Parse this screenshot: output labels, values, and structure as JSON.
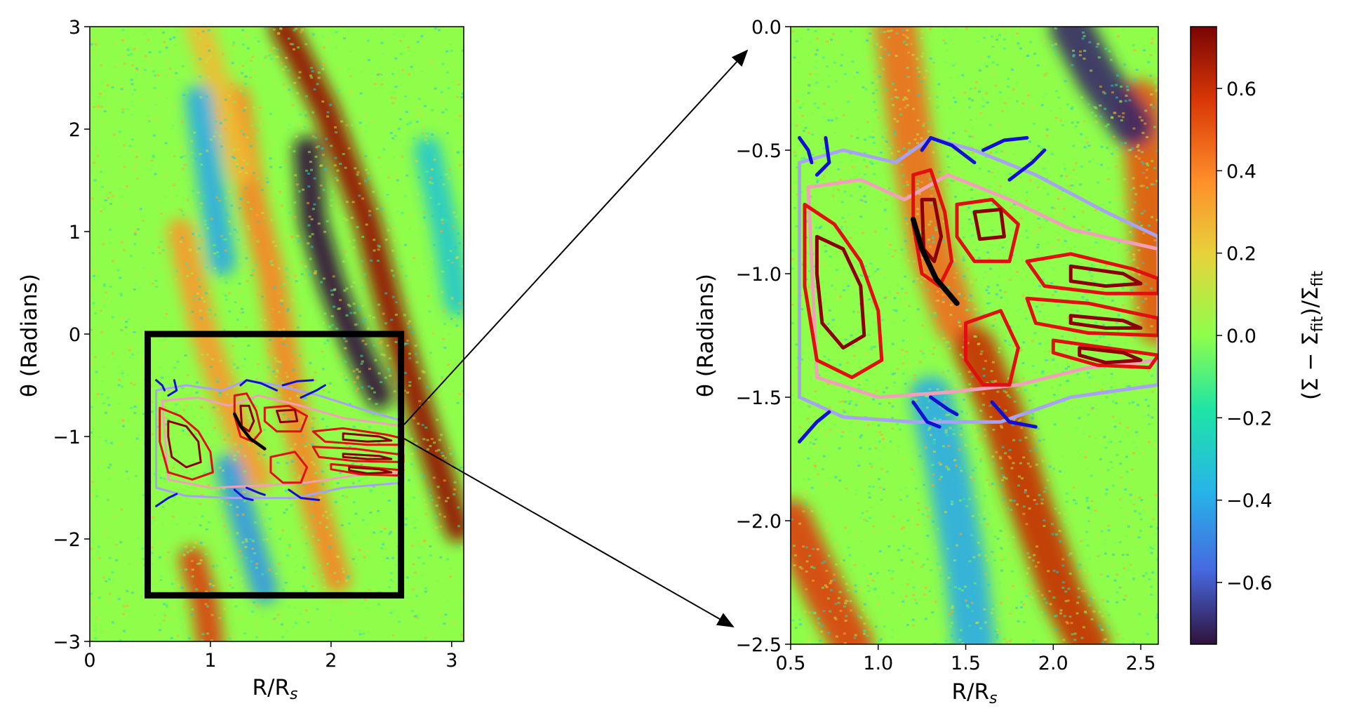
{
  "chart_data": [
    {
      "type": "heatmap",
      "panel": "full",
      "xlabel": "R/R",
      "xlabel_sub": "s",
      "ylabel": "θ (Radians)",
      "xlim": [
        0,
        3.1
      ],
      "ylim": [
        -3,
        3
      ],
      "xticks": [
        0,
        1,
        2,
        3
      ],
      "xtick_labels": [
        "0",
        "1",
        "2",
        "3"
      ],
      "yticks": [
        -3,
        -2,
        -1,
        0,
        1,
        2,
        3
      ],
      "ytick_labels": [
        "−3",
        "−2",
        "−1",
        "0",
        "1",
        "2",
        "3"
      ],
      "zoom_box": {
        "x": [
          0.48,
          2.58
        ],
        "y": [
          -2.55,
          0.0
        ]
      },
      "features": [
        {
          "kind": "overdense-band",
          "points": [
            [
              1.6,
              3.0
            ],
            [
              1.95,
              2.2
            ],
            [
              2.3,
              1.1
            ],
            [
              2.5,
              0.2
            ],
            [
              2.75,
              -0.8
            ],
            [
              3.05,
              -1.9
            ]
          ],
          "value": 0.7
        },
        {
          "kind": "overdense-band",
          "points": [
            [
              1.22,
              2.3
            ],
            [
              1.35,
              1.3
            ],
            [
              1.5,
              0.6
            ],
            [
              1.7,
              -0.8
            ],
            [
              1.85,
              -1.6
            ],
            [
              2.05,
              -2.4
            ]
          ],
          "value": 0.4
        },
        {
          "kind": "overdense-band",
          "points": [
            [
              0.75,
              1.0
            ],
            [
              0.95,
              0.0
            ],
            [
              1.15,
              -0.7
            ],
            [
              1.4,
              -1.4
            ]
          ],
          "value": 0.35
        },
        {
          "kind": "overdense-band",
          "points": [
            [
              0.85,
              -2.2
            ],
            [
              0.95,
              -2.6
            ],
            [
              1.0,
              -3.0
            ]
          ],
          "value": 0.55
        },
        {
          "kind": "overdense-band",
          "points": [
            [
              0.9,
              3.0
            ],
            [
              1.1,
              2.3
            ],
            [
              1.25,
              1.6
            ]
          ],
          "value": 0.25
        },
        {
          "kind": "underdense-band",
          "points": [
            [
              1.8,
              1.8
            ],
            [
              1.85,
              1.1
            ],
            [
              2.0,
              0.5
            ],
            [
              2.2,
              -0.1
            ],
            [
              2.4,
              -0.6
            ]
          ],
          "value": -0.75
        },
        {
          "kind": "underdense-band",
          "points": [
            [
              0.9,
              2.3
            ],
            [
              1.0,
              1.5
            ],
            [
              1.1,
              0.7
            ]
          ],
          "value": -0.4
        },
        {
          "kind": "underdense-band",
          "points": [
            [
              1.15,
              -1.3
            ],
            [
              1.3,
              -1.9
            ],
            [
              1.45,
              -2.5
            ]
          ],
          "value": -0.45
        },
        {
          "kind": "underdense-band",
          "points": [
            [
              2.8,
              1.8
            ],
            [
              2.95,
              1.0
            ],
            [
              3.05,
              0.3
            ]
          ],
          "value": -0.3
        }
      ]
    },
    {
      "type": "heatmap",
      "panel": "zoom",
      "xlabel": "R/R",
      "xlabel_sub": "s",
      "ylabel": "θ (Radians)",
      "xlim": [
        0.5,
        2.6
      ],
      "ylim": [
        -2.5,
        0.0
      ],
      "xticks": [
        0.5,
        1.0,
        1.5,
        2.0,
        2.5
      ],
      "xtick_labels": [
        "0.5",
        "1.0",
        "1.5",
        "2.0",
        "2.5"
      ],
      "yticks": [
        -2.5,
        -2.0,
        -1.5,
        -1.0,
        -0.5,
        0.0
      ],
      "ytick_labels": [
        "−2.5",
        "−2.0",
        "−1.5",
        "−1.0",
        "−0.5",
        "0.0"
      ],
      "features": [
        {
          "kind": "overdense-band",
          "points": [
            [
              1.1,
              0.0
            ],
            [
              1.2,
              -0.5
            ],
            [
              1.3,
              -0.9
            ],
            [
              1.45,
              -1.2
            ]
          ],
          "value": 0.45
        },
        {
          "kind": "overdense-band",
          "points": [
            [
              1.55,
              -1.3
            ],
            [
              1.7,
              -1.55
            ],
            [
              1.85,
              -1.9
            ],
            [
              2.05,
              -2.3
            ],
            [
              2.2,
              -2.5
            ]
          ],
          "value": 0.6
        },
        {
          "kind": "overdense-band",
          "points": [
            [
              0.5,
              -2.0
            ],
            [
              0.7,
              -2.3
            ],
            [
              0.85,
              -2.5
            ]
          ],
          "value": 0.55
        },
        {
          "kind": "overdense-band",
          "points": [
            [
              2.5,
              -0.3
            ],
            [
              2.55,
              -0.7
            ],
            [
              2.6,
              -1.2
            ]
          ],
          "value": 0.5
        },
        {
          "kind": "underdense-band",
          "points": [
            [
              2.1,
              0.0
            ],
            [
              2.25,
              -0.2
            ],
            [
              2.45,
              -0.4
            ]
          ],
          "value": -0.7
        },
        {
          "kind": "underdense-band",
          "points": [
            [
              1.3,
              -1.5
            ],
            [
              1.4,
              -1.8
            ],
            [
              1.5,
              -2.2
            ],
            [
              1.55,
              -2.5
            ]
          ],
          "value": -0.4
        }
      ],
      "contours": [
        {
          "level": "light",
          "color": "#a8a3f0",
          "points": [
            [
              0.55,
              -0.55
            ],
            [
              0.8,
              -0.5
            ],
            [
              1.1,
              -0.55
            ],
            [
              1.3,
              -0.45
            ],
            [
              1.55,
              -0.5
            ],
            [
              1.9,
              -0.6
            ],
            [
              2.3,
              -0.75
            ],
            [
              2.6,
              -0.85
            ],
            [
              2.6,
              -1.45
            ],
            [
              2.1,
              -1.5
            ],
            [
              1.7,
              -1.6
            ],
            [
              1.2,
              -1.6
            ],
            [
              0.8,
              -1.58
            ],
            [
              0.55,
              -1.5
            ]
          ]
        },
        {
          "level": "pink",
          "color": "#f0a0b8",
          "points": [
            [
              0.6,
              -0.65
            ],
            [
              0.9,
              -0.62
            ],
            [
              1.15,
              -0.7
            ],
            [
              1.4,
              -0.6
            ],
            [
              1.75,
              -0.7
            ],
            [
              2.1,
              -0.82
            ],
            [
              2.6,
              -0.9
            ],
            [
              2.6,
              -1.35
            ],
            [
              2.2,
              -1.38
            ],
            [
              1.8,
              -1.45
            ],
            [
              1.4,
              -1.48
            ],
            [
              1.0,
              -1.5
            ],
            [
              0.65,
              -1.42
            ]
          ]
        },
        {
          "level": "red",
          "color": "#e01010",
          "points": [
            [
              0.58,
              -0.72
            ],
            [
              0.75,
              -0.8
            ],
            [
              0.9,
              -0.95
            ],
            [
              1.0,
              -1.15
            ],
            [
              1.02,
              -1.35
            ],
            [
              0.85,
              -1.42
            ],
            [
              0.65,
              -1.35
            ],
            [
              0.58,
              -1.05
            ]
          ]
        },
        {
          "level": "red",
          "color": "#e01010",
          "points": [
            [
              1.2,
              -0.6
            ],
            [
              1.3,
              -0.58
            ],
            [
              1.38,
              -0.75
            ],
            [
              1.42,
              -0.95
            ],
            [
              1.35,
              -1.05
            ],
            [
              1.25,
              -1.0
            ],
            [
              1.2,
              -0.8
            ]
          ]
        },
        {
          "level": "red",
          "color": "#e01010",
          "points": [
            [
              1.45,
              -0.72
            ],
            [
              1.65,
              -0.7
            ],
            [
              1.8,
              -0.8
            ],
            [
              1.75,
              -0.95
            ],
            [
              1.55,
              -0.95
            ],
            [
              1.45,
              -0.85
            ]
          ]
        },
        {
          "level": "red",
          "color": "#e01010",
          "points": [
            [
              1.5,
              -1.2
            ],
            [
              1.7,
              -1.15
            ],
            [
              1.8,
              -1.3
            ],
            [
              1.75,
              -1.45
            ],
            [
              1.6,
              -1.45
            ],
            [
              1.5,
              -1.35
            ]
          ]
        },
        {
          "level": "red",
          "color": "#e01010",
          "points": [
            [
              1.85,
              -0.95
            ],
            [
              2.1,
              -0.92
            ],
            [
              2.45,
              -0.98
            ],
            [
              2.6,
              -1.02
            ],
            [
              2.6,
              -1.08
            ],
            [
              2.3,
              -1.08
            ],
            [
              1.95,
              -1.05
            ]
          ]
        },
        {
          "level": "red",
          "color": "#e01010",
          "points": [
            [
              1.85,
              -1.1
            ],
            [
              2.2,
              -1.12
            ],
            [
              2.6,
              -1.18
            ],
            [
              2.6,
              -1.25
            ],
            [
              2.2,
              -1.24
            ],
            [
              1.9,
              -1.2
            ]
          ]
        },
        {
          "level": "red",
          "color": "#e01010",
          "points": [
            [
              2.0,
              -1.27
            ],
            [
              2.3,
              -1.3
            ],
            [
              2.6,
              -1.33
            ],
            [
              2.55,
              -1.38
            ],
            [
              2.25,
              -1.37
            ],
            [
              2.0,
              -1.32
            ]
          ]
        },
        {
          "level": "darkred",
          "color": "#8b0000",
          "points": [
            [
              0.65,
              -0.85
            ],
            [
              0.8,
              -0.9
            ],
            [
              0.9,
              -1.05
            ],
            [
              0.92,
              -1.25
            ],
            [
              0.8,
              -1.3
            ],
            [
              0.68,
              -1.2
            ],
            [
              0.65,
              -1.0
            ]
          ]
        },
        {
          "level": "darkred",
          "color": "#8b0000",
          "points": [
            [
              1.25,
              -0.7
            ],
            [
              1.32,
              -0.7
            ],
            [
              1.36,
              -0.85
            ],
            [
              1.32,
              -0.95
            ],
            [
              1.26,
              -0.9
            ]
          ]
        },
        {
          "level": "darkred",
          "color": "#8b0000",
          "points": [
            [
              1.55,
              -0.75
            ],
            [
              1.7,
              -0.74
            ],
            [
              1.72,
              -0.85
            ],
            [
              1.58,
              -0.86
            ]
          ]
        },
        {
          "level": "darkred",
          "color": "#8b0000",
          "points": [
            [
              2.1,
              -0.97
            ],
            [
              2.4,
              -1.0
            ],
            [
              2.5,
              -1.04
            ],
            [
              2.3,
              -1.05
            ],
            [
              2.1,
              -1.03
            ]
          ]
        },
        {
          "level": "darkred",
          "color": "#8b0000",
          "points": [
            [
              2.1,
              -1.17
            ],
            [
              2.4,
              -1.19
            ],
            [
              2.5,
              -1.22
            ],
            [
              2.3,
              -1.22
            ],
            [
              2.1,
              -1.2
            ]
          ]
        },
        {
          "level": "darkred",
          "color": "#8b0000",
          "points": [
            [
              2.15,
              -1.3
            ],
            [
              2.4,
              -1.32
            ],
            [
              2.5,
              -1.35
            ],
            [
              2.3,
              -1.36
            ],
            [
              2.15,
              -1.33
            ]
          ]
        },
        {
          "level": "blue",
          "color": "#1010d0",
          "points": [
            [
              0.55,
              -0.45
            ],
            [
              0.6,
              -0.5
            ],
            [
              0.62,
              -0.55
            ]
          ]
        },
        {
          "level": "blue",
          "color": "#1010d0",
          "points": [
            [
              0.7,
              -0.45
            ],
            [
              0.72,
              -0.55
            ],
            [
              0.65,
              -0.6
            ]
          ]
        },
        {
          "level": "blue",
          "color": "#1010d0",
          "points": [
            [
              1.25,
              -0.5
            ],
            [
              1.3,
              -0.45
            ],
            [
              1.42,
              -0.48
            ],
            [
              1.55,
              -0.55
            ]
          ]
        },
        {
          "level": "blue",
          "color": "#1010d0",
          "points": [
            [
              1.6,
              -0.5
            ],
            [
              1.72,
              -0.46
            ],
            [
              1.85,
              -0.45
            ]
          ]
        },
        {
          "level": "blue",
          "color": "#1010d0",
          "points": [
            [
              1.75,
              -0.62
            ],
            [
              1.88,
              -0.55
            ],
            [
              1.95,
              -0.5
            ]
          ]
        },
        {
          "level": "blue",
          "color": "#1010d0",
          "points": [
            [
              0.55,
              -1.68
            ],
            [
              0.65,
              -1.6
            ],
            [
              0.72,
              -1.56
            ]
          ]
        },
        {
          "level": "blue",
          "color": "#1010d0",
          "points": [
            [
              1.2,
              -1.52
            ],
            [
              1.28,
              -1.6
            ],
            [
              1.35,
              -1.62
            ]
          ]
        },
        {
          "level": "blue",
          "color": "#1010d0",
          "points": [
            [
              1.3,
              -1.5
            ],
            [
              1.4,
              -1.55
            ],
            [
              1.45,
              -1.57
            ]
          ]
        },
        {
          "level": "blue",
          "color": "#1010d0",
          "points": [
            [
              1.65,
              -1.52
            ],
            [
              1.75,
              -1.6
            ],
            [
              1.9,
              -1.62
            ]
          ]
        }
      ],
      "arc": {
        "color": "#000000",
        "points": [
          [
            1.2,
            -0.78
          ],
          [
            1.25,
            -0.9
          ],
          [
            1.33,
            -1.02
          ],
          [
            1.45,
            -1.12
          ]
        ]
      }
    }
  ],
  "colorbar": {
    "label": "(Σ − Σ",
    "label_sub": "fit",
    "label_mid": ")/Σ",
    "label_sub2": "fit",
    "range": [
      -0.75,
      0.75
    ],
    "ticks": [
      -0.6,
      -0.4,
      -0.2,
      0.0,
      0.2,
      0.4,
      0.6
    ],
    "tick_labels": [
      "−0.6",
      "−0.4",
      "−0.2",
      "0.0",
      "0.2",
      "0.4",
      "0.6"
    ],
    "colormap": [
      "#30123b",
      "#4669e0",
      "#27b5e8",
      "#1fe4a6",
      "#8ffe4b",
      "#e6d33b",
      "#fe8f2a",
      "#d93806",
      "#7a0403"
    ]
  }
}
